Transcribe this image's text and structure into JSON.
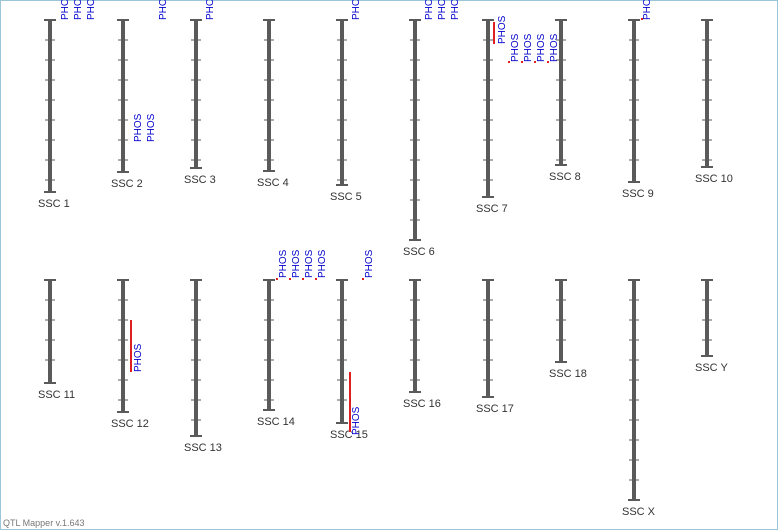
{
  "chromosomes": [
    {
      "name": "SSC 1",
      "qtls": [
        "PHOS",
        "PHOS",
        "PHOS"
      ]
    },
    {
      "name": "SSC 2",
      "qtls": [
        "PHOS",
        "PHOS",
        "PHOS"
      ]
    },
    {
      "name": "SSC 3",
      "qtls": [
        "PHOS"
      ]
    },
    {
      "name": "SSC 4",
      "qtls": []
    },
    {
      "name": "SSC 5",
      "qtls": [
        "PHOS"
      ]
    },
    {
      "name": "SSC 6",
      "qtls": [
        "PHOS",
        "PHOS",
        "PHOS"
      ]
    },
    {
      "name": "SSC 7",
      "qtls": [
        "PHOS",
        "PHOS",
        "PHOS",
        "PHOS",
        "PHOS"
      ]
    },
    {
      "name": "SSC 8",
      "qtls": []
    },
    {
      "name": "SSC 9",
      "qtls": [
        "PHOS"
      ]
    },
    {
      "name": "SSC 10",
      "qtls": []
    },
    {
      "name": "SSC 11",
      "qtls": []
    },
    {
      "name": "SSC 12",
      "qtls": [
        "PHOS"
      ]
    },
    {
      "name": "SSC 13",
      "qtls": []
    },
    {
      "name": "SSC 14",
      "qtls": [
        "PHOS",
        "PHOS",
        "PHOS",
        "PHOS"
      ]
    },
    {
      "name": "SSC 15",
      "qtls": [
        "PHOS",
        "PHOS"
      ]
    },
    {
      "name": "SSC 16",
      "qtls": []
    },
    {
      "name": "SSC 17",
      "qtls": []
    },
    {
      "name": "SSC 18",
      "qtls": []
    },
    {
      "name": "SSC X",
      "qtls": []
    },
    {
      "name": "SSC Y",
      "qtls": []
    }
  ],
  "footer": "QTL Mapper v.1.643"
}
